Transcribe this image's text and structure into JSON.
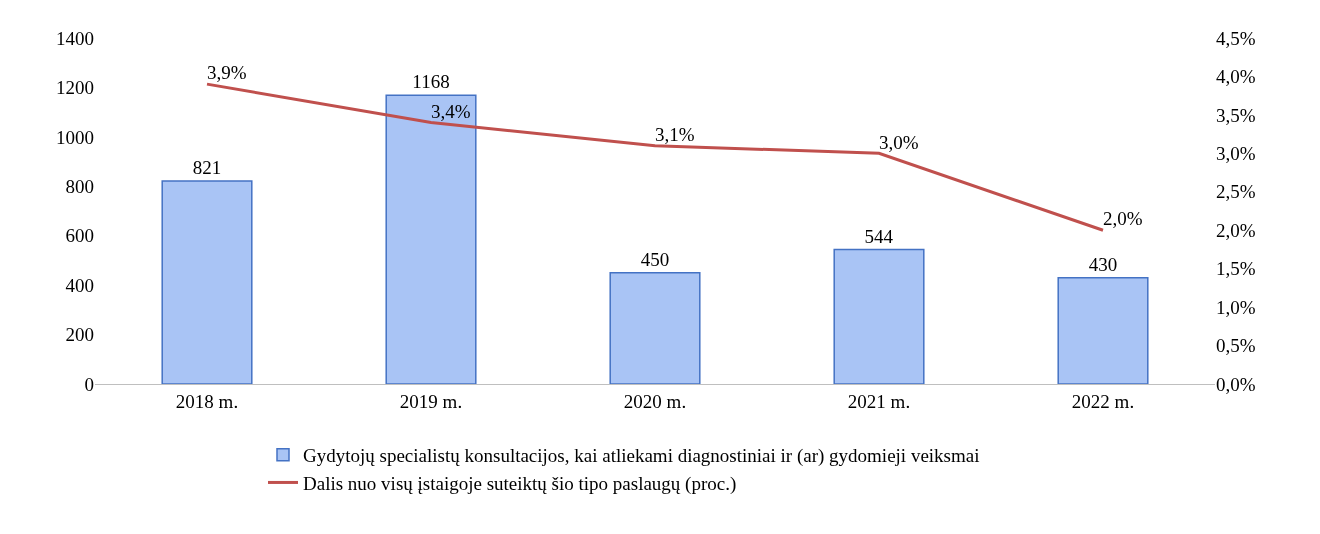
{
  "chart_data": {
    "type": "bar",
    "categories": [
      "2018 m.",
      "2019 m.",
      "2020 m.",
      "2021 m.",
      "2022 m."
    ],
    "series": [
      {
        "name": "Gydytojų specialistų konsultacijos, kai atliekami diagnostiniai ir (ar) gydomieji veiksmai",
        "color": "#a9c4f5",
        "values": [
          821,
          1168,
          450,
          544,
          430
        ]
      },
      {
        "name": "Dalis nuo visų įstaigoje suteiktų šio tipo paslaugų (proc.)",
        "type": "line",
        "axis": "y2",
        "color": "#c0504d",
        "values": [
          3.9,
          3.4,
          3.1,
          3.0,
          2.0
        ],
        "value_labels": [
          "3,9%",
          "3,4%",
          "3,1%",
          "3,0%",
          "2,0%"
        ]
      }
    ],
    "data_labels": true,
    "ylim": [
      0,
      1400
    ],
    "yticks": [
      0,
      200,
      400,
      600,
      800,
      1000,
      1200,
      1400
    ],
    "y2lim": [
      0,
      4.5
    ],
    "y2ticks": [
      {
        "value": 0,
        "label": "0,0%"
      },
      {
        "value": 0.5,
        "label": "0,5%"
      },
      {
        "value": 1,
        "label": "1,0%"
      },
      {
        "value": 1.5,
        "label": "1,5%"
      },
      {
        "value": 2,
        "label": "2,0%"
      },
      {
        "value": 2.5,
        "label": "2,5%"
      },
      {
        "value": 3,
        "label": "3,0%"
      },
      {
        "value": 3.5,
        "label": "3,5%"
      },
      {
        "value": 4,
        "label": "4,0%"
      },
      {
        "value": 4.5,
        "label": "4,5%"
      }
    ],
    "grid": false,
    "legend": "bottom",
    "marker": "none",
    "line_style": "solid"
  }
}
